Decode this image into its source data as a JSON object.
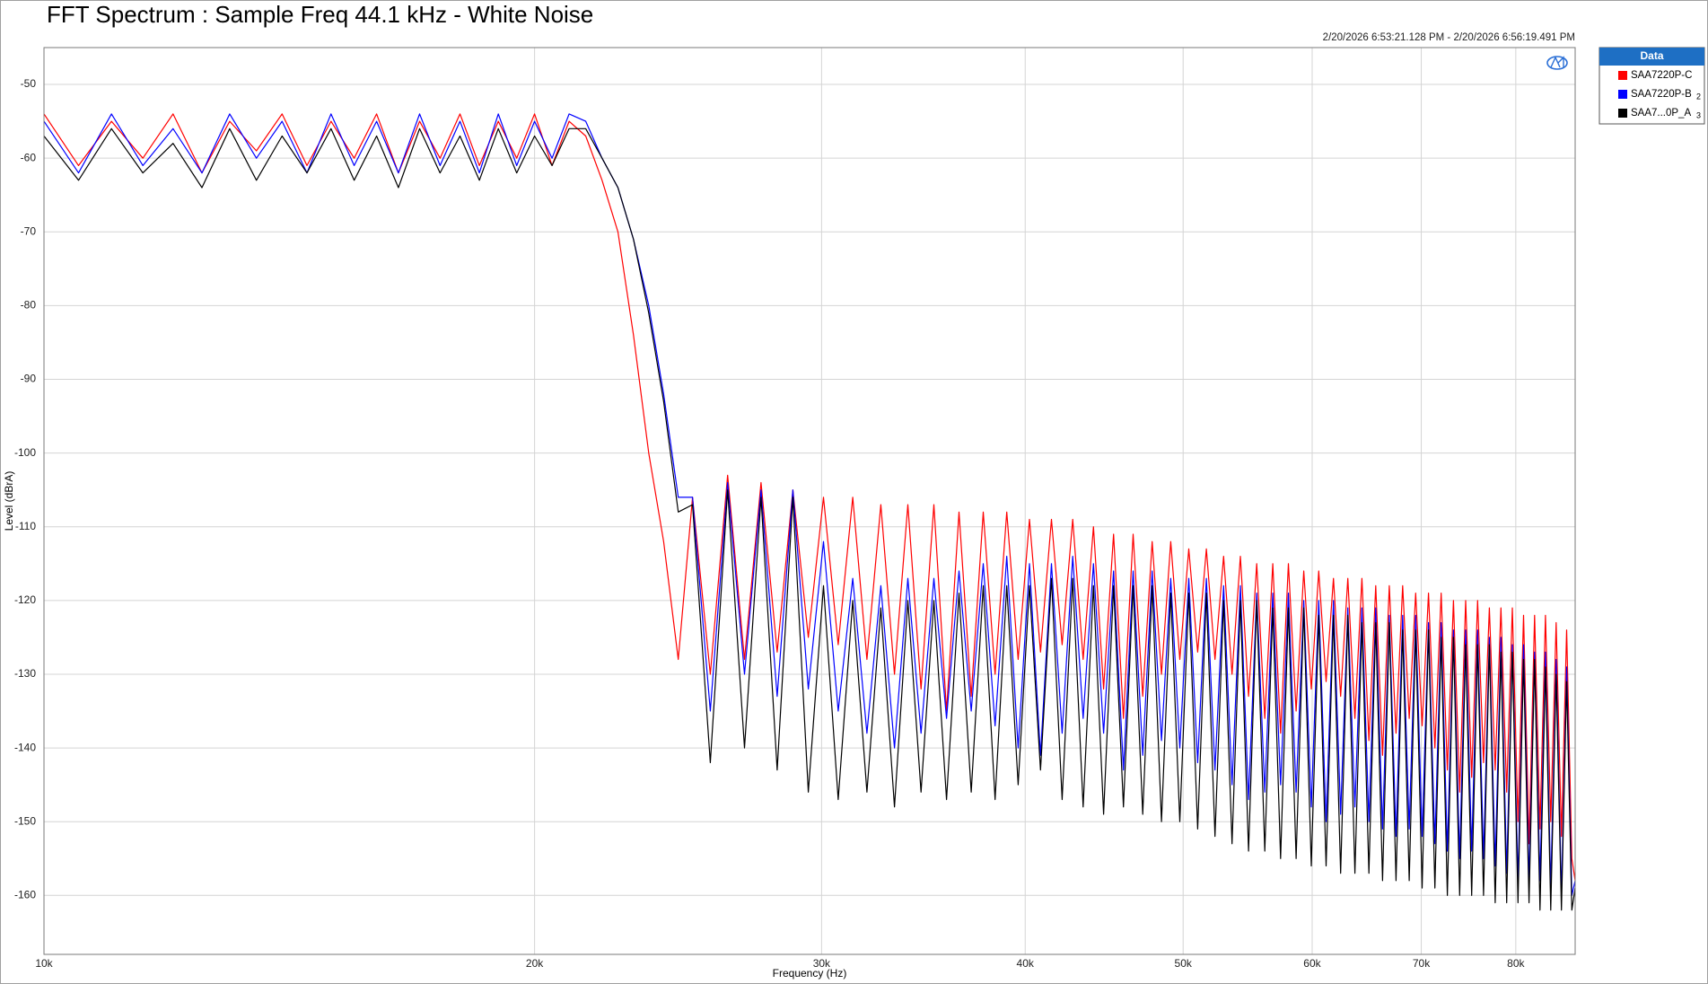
{
  "chart_data": {
    "type": "line",
    "title": "FFT Spectrum : Sample Freq 44.1 kHz - White Noise",
    "subtitle": "2/20/2026 6:53:21.128 PM - 2/20/2026 6:56:19.491 PM",
    "x_label": "Frequency (Hz)",
    "y_label": "Level (dBrA)",
    "legend_title": "Data",
    "legend_position": "right",
    "xscale": "log",
    "grid": true,
    "xlim": [
      10000,
      87000
    ],
    "ylim": [
      -168,
      -45
    ],
    "xticks": [
      {
        "value": 10000,
        "label": "10k"
      },
      {
        "value": 20000,
        "label": "20k"
      },
      {
        "value": 30000,
        "label": "30k"
      },
      {
        "value": 40000,
        "label": "40k"
      },
      {
        "value": 50000,
        "label": "50k"
      },
      {
        "value": 60000,
        "label": "60k"
      },
      {
        "value": 70000,
        "label": "70k"
      },
      {
        "value": 80000,
        "label": "80k"
      }
    ],
    "yticks": [
      -50,
      -60,
      -70,
      -80,
      -90,
      -100,
      -110,
      -120,
      -130,
      -140,
      -150,
      -160
    ],
    "x": [
      10000,
      10500,
      11000,
      11500,
      12000,
      12500,
      13000,
      13500,
      14000,
      14500,
      15000,
      15500,
      16000,
      16500,
      17000,
      17500,
      18000,
      18500,
      19000,
      19500,
      20000,
      20500,
      21000,
      21500,
      22000,
      22500,
      23000,
      23500,
      24000,
      24500,
      25000,
      25635,
      26270,
      26905,
      27540,
      28175,
      28810,
      29445,
      30080,
      30715,
      31350,
      31985,
      32620,
      33255,
      33890,
      34525,
      35160,
      35795,
      36430,
      37065,
      37700,
      38335,
      38970,
      39605,
      40240,
      40875,
      41510,
      42145,
      42780,
      43415,
      44050,
      44685,
      45320,
      45955,
      46590,
      47225,
      47860,
      48495,
      49130,
      49765,
      50400,
      51035,
      51670,
      52305,
      52940,
      53575,
      54210,
      54845,
      55480,
      56115,
      56750,
      57385,
      58020,
      58655,
      59290,
      59925,
      60560,
      61195,
      61830,
      62465,
      63100,
      63735,
      64370,
      65005,
      65640,
      66275,
      66910,
      67545,
      68180,
      68815,
      69450,
      70085,
      70720,
      71355,
      71990,
      72625,
      73260,
      73895,
      74530,
      75165,
      75800,
      76435,
      77070,
      77705,
      78340,
      78975,
      79610,
      80245,
      80880,
      81515,
      82150,
      82785,
      83420,
      84055,
      84690,
      85325,
      85960,
      86595,
      87000
    ],
    "series": [
      {
        "name": "SAA7220P-C",
        "color": "#ff0000",
        "values": [
          -54,
          -61,
          -55,
          -60,
          -54,
          -62,
          -55,
          -59,
          -54,
          -61,
          -55,
          -60,
          -54,
          -62,
          -55,
          -60,
          -54,
          -61,
          -55,
          -60,
          -54,
          -61,
          -55,
          -57,
          -63,
          -70,
          -84,
          -100,
          -112,
          -128,
          -106,
          -130,
          -103,
          -128,
          -104,
          -127,
          -105,
          -125,
          -106,
          -126,
          -106,
          -128,
          -107,
          -130,
          -107,
          -132,
          -107,
          -135,
          -108,
          -133,
          -108,
          -130,
          -108,
          -128,
          -109,
          -127,
          -109,
          -126,
          -109,
          -128,
          -110,
          -132,
          -111,
          -136,
          -111,
          -133,
          -112,
          -130,
          -112,
          -128,
          -113,
          -127,
          -113,
          -128,
          -114,
          -130,
          -114,
          -133,
          -115,
          -136,
          -115,
          -138,
          -115,
          -135,
          -116,
          -132,
          -116,
          -131,
          -117,
          -133,
          -117,
          -136,
          -117,
          -139,
          -118,
          -141,
          -118,
          -138,
          -118,
          -136,
          -119,
          -137,
          -119,
          -140,
          -119,
          -143,
          -120,
          -146,
          -120,
          -144,
          -120,
          -142,
          -121,
          -143,
          -121,
          -146,
          -121,
          -150,
          -122,
          -153,
          -122,
          -151,
          -122,
          -150,
          -123,
          -152,
          -124,
          -155,
          -158
        ]
      },
      {
        "name": "SAA7220P-B",
        "legend_tag": "2",
        "color": "#0000ff",
        "values": [
          -55,
          -62,
          -54,
          -61,
          -56,
          -62,
          -54,
          -60,
          -55,
          -62,
          -54,
          -61,
          -55,
          -62,
          -54,
          -61,
          -55,
          -62,
          -54,
          -61,
          -55,
          -60,
          -54,
          -55,
          -60,
          -64,
          -71,
          -80,
          -92,
          -106,
          -106,
          -135,
          -104,
          -130,
          -105,
          -133,
          -105,
          -132,
          -112,
          -135,
          -117,
          -138,
          -118,
          -140,
          -117,
          -138,
          -117,
          -136,
          -116,
          -135,
          -115,
          -137,
          -114,
          -140,
          -115,
          -141,
          -115,
          -138,
          -114,
          -136,
          -115,
          -138,
          -116,
          -143,
          -116,
          -141,
          -116,
          -139,
          -117,
          -140,
          -117,
          -142,
          -117,
          -143,
          -118,
          -145,
          -118,
          -147,
          -119,
          -146,
          -119,
          -145,
          -119,
          -146,
          -120,
          -148,
          -120,
          -150,
          -120,
          -149,
          -121,
          -148,
          -121,
          -150,
          -121,
          -151,
          -122,
          -152,
          -122,
          -151,
          -122,
          -152,
          -123,
          -153,
          -123,
          -154,
          -124,
          -155,
          -124,
          -154,
          -124,
          -155,
          -125,
          -156,
          -125,
          -157,
          -126,
          -158,
          -126,
          -158,
          -127,
          -158,
          -127,
          -159,
          -128,
          -160,
          -129,
          -160,
          -158
        ]
      },
      {
        "name": "SAA7...0P_A",
        "legend_tag": "3",
        "color": "#000000",
        "values": [
          -57,
          -63,
          -56,
          -62,
          -58,
          -64,
          -56,
          -63,
          -57,
          -62,
          -56,
          -63,
          -57,
          -64,
          -56,
          -62,
          -57,
          -63,
          -56,
          -62,
          -57,
          -61,
          -56,
          -56,
          -60,
          -64,
          -71,
          -81,
          -93,
          -108,
          -107,
          -142,
          -105,
          -140,
          -106,
          -143,
          -106,
          -146,
          -118,
          -147,
          -120,
          -146,
          -121,
          -148,
          -120,
          -146,
          -120,
          -147,
          -119,
          -146,
          -118,
          -147,
          -118,
          -145,
          -118,
          -143,
          -117,
          -147,
          -117,
          -148,
          -118,
          -149,
          -118,
          -148,
          -118,
          -149,
          -118,
          -150,
          -119,
          -150,
          -119,
          -151,
          -119,
          -152,
          -120,
          -153,
          -120,
          -154,
          -120,
          -154,
          -121,
          -155,
          -121,
          -155,
          -121,
          -156,
          -122,
          -156,
          -122,
          -157,
          -122,
          -157,
          -123,
          -157,
          -123,
          -158,
          -123,
          -158,
          -124,
          -158,
          -124,
          -159,
          -124,
          -159,
          -125,
          -160,
          -125,
          -160,
          -126,
          -160,
          -126,
          -160,
          -126,
          -161,
          -127,
          -161,
          -127,
          -161,
          -128,
          -161,
          -128,
          -162,
          -129,
          -162,
          -130,
          -162,
          -131,
          -162,
          -159
        ]
      }
    ]
  }
}
